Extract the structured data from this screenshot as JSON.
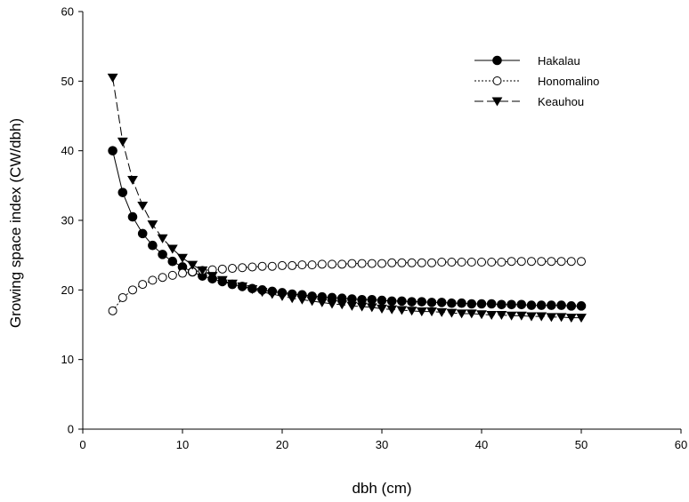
{
  "chart_data": {
    "type": "line",
    "title": "",
    "xlabel": "dbh (cm)",
    "ylabel": "Growing space index (CW/dbh)",
    "xlim": [
      0,
      60
    ],
    "ylim": [
      0,
      60
    ],
    "xticks": [
      0,
      10,
      20,
      30,
      40,
      50,
      60
    ],
    "yticks": [
      0,
      10,
      20,
      30,
      40,
      50,
      60
    ],
    "grid": false,
    "legend_position": "top-right",
    "series": [
      {
        "name": "Hakalau",
        "marker": "filled-circle",
        "line_style": "solid",
        "x": [
          3,
          4,
          5,
          6,
          7,
          8,
          9,
          10,
          11,
          12,
          13,
          14,
          15,
          16,
          17,
          18,
          19,
          20,
          21,
          22,
          23,
          24,
          25,
          26,
          27,
          28,
          29,
          30,
          31,
          32,
          33,
          34,
          35,
          36,
          37,
          38,
          39,
          40,
          41,
          42,
          43,
          44,
          45,
          46,
          47,
          48,
          49,
          50
        ],
        "values": [
          40.0,
          34.0,
          30.5,
          28.1,
          26.4,
          25.1,
          24.1,
          23.3,
          22.6,
          22.0,
          21.6,
          21.2,
          20.8,
          20.5,
          20.2,
          20.0,
          19.8,
          19.6,
          19.4,
          19.3,
          19.1,
          19.0,
          18.9,
          18.8,
          18.7,
          18.6,
          18.6,
          18.5,
          18.4,
          18.4,
          18.3,
          18.3,
          18.2,
          18.2,
          18.1,
          18.1,
          18.0,
          18.0,
          18.0,
          17.9,
          17.9,
          17.9,
          17.8,
          17.8,
          17.8,
          17.8,
          17.7,
          17.7
        ]
      },
      {
        "name": "Honomalino",
        "marker": "open-circle",
        "line_style": "dotted",
        "x": [
          3,
          4,
          5,
          6,
          7,
          8,
          9,
          10,
          11,
          12,
          13,
          14,
          15,
          16,
          17,
          18,
          19,
          20,
          21,
          22,
          23,
          24,
          25,
          26,
          27,
          28,
          29,
          30,
          31,
          32,
          33,
          34,
          35,
          36,
          37,
          38,
          39,
          40,
          41,
          42,
          43,
          44,
          45,
          46,
          47,
          48,
          49,
          50
        ],
        "values": [
          17.0,
          18.9,
          20.0,
          20.8,
          21.4,
          21.8,
          22.1,
          22.4,
          22.6,
          22.8,
          22.9,
          23.0,
          23.1,
          23.2,
          23.3,
          23.4,
          23.4,
          23.5,
          23.5,
          23.6,
          23.6,
          23.7,
          23.7,
          23.7,
          23.8,
          23.8,
          23.8,
          23.8,
          23.9,
          23.9,
          23.9,
          23.9,
          23.9,
          24.0,
          24.0,
          24.0,
          24.0,
          24.0,
          24.0,
          24.0,
          24.1,
          24.1,
          24.1,
          24.1,
          24.1,
          24.1,
          24.1,
          24.1
        ]
      },
      {
        "name": "Keauhou",
        "marker": "filled-triangle-down",
        "line_style": "dashed",
        "x": [
          3,
          4,
          5,
          6,
          7,
          8,
          9,
          10,
          11,
          12,
          13,
          14,
          15,
          16,
          17,
          18,
          19,
          20,
          21,
          22,
          23,
          24,
          25,
          26,
          27,
          28,
          29,
          30,
          31,
          32,
          33,
          34,
          35,
          36,
          37,
          38,
          39,
          40,
          41,
          42,
          43,
          44,
          45,
          46,
          47,
          48,
          49,
          50
        ],
        "values": [
          50.5,
          41.3,
          35.8,
          32.1,
          29.4,
          27.4,
          25.9,
          24.6,
          23.6,
          22.8,
          22.0,
          21.4,
          20.9,
          20.5,
          20.1,
          19.7,
          19.4,
          19.1,
          18.8,
          18.6,
          18.4,
          18.2,
          18.0,
          17.9,
          17.7,
          17.6,
          17.5,
          17.3,
          17.2,
          17.1,
          17.0,
          16.9,
          16.9,
          16.8,
          16.7,
          16.6,
          16.6,
          16.5,
          16.4,
          16.4,
          16.3,
          16.3,
          16.2,
          16.2,
          16.1,
          16.1,
          16.0,
          16.0
        ]
      }
    ]
  }
}
